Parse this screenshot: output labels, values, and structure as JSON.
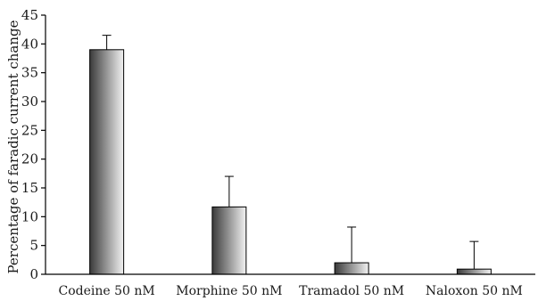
{
  "chart_data": {
    "type": "bar",
    "title": "",
    "xlabel": "",
    "ylabel": "Percentage of faradic current change",
    "ylim": [
      0,
      45
    ],
    "yticks": [
      0,
      5,
      10,
      15,
      20,
      25,
      30,
      35,
      40,
      45
    ],
    "categories": [
      "Codeine 50 nM",
      "Morphine 50 nM",
      "Tramadol 50 nM",
      "Naloxon 50 nM"
    ],
    "values": [
      39,
      11.7,
      2,
      0.9
    ],
    "error_plus": [
      2.5,
      5.3,
      6.2,
      4.8
    ],
    "grid": false,
    "legend": "none",
    "bar_gradient": [
      "#3a3a3a",
      "#f2f2f2"
    ]
  }
}
